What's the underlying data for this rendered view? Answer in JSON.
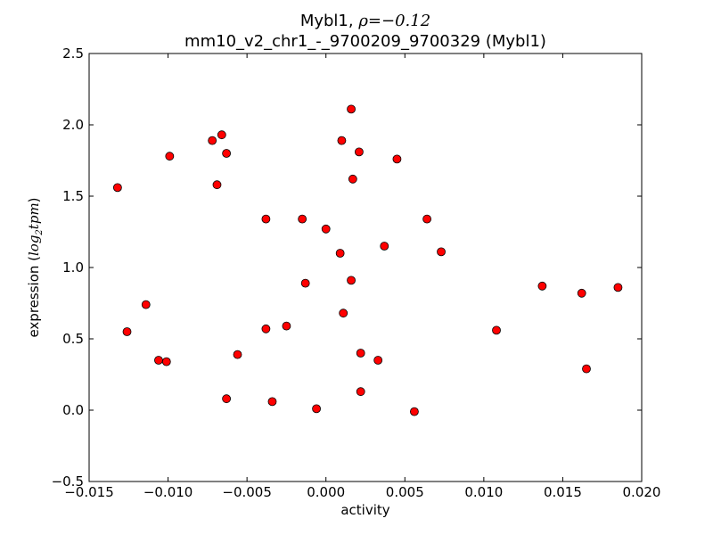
{
  "chart_data": {
    "type": "scatter",
    "title_line1_prefix": "Mybl1, ",
    "title_line1_rho": "ρ",
    "title_line1_value": "=−0.12",
    "title_line2": "mm10_v2_chr1_-_9700209_9700329 (Mybl1)",
    "xlabel": "activity",
    "ylabel_prefix": "expression (",
    "ylabel_math": "log",
    "ylabel_sub": "2",
    "ylabel_math2": "tpm",
    "ylabel_suffix": ")",
    "xlim": [
      -0.015,
      0.02
    ],
    "ylim": [
      -0.5,
      2.5
    ],
    "xticks": [
      -0.015,
      -0.01,
      -0.005,
      0.0,
      0.005,
      0.01,
      0.015,
      0.02
    ],
    "xtick_labels": [
      "−0.015",
      "−0.010",
      "−0.005",
      "0.000",
      "0.005",
      "0.010",
      "0.015",
      "0.020"
    ],
    "yticks": [
      -0.5,
      0.0,
      0.5,
      1.0,
      1.5,
      2.0,
      2.5
    ],
    "ytick_labels": [
      "−0.5",
      "0.0",
      "0.5",
      "1.0",
      "1.5",
      "2.0",
      "2.5"
    ],
    "grid": false,
    "marker_color": "#ff0000",
    "marker_edge_color": "#000000",
    "points": [
      {
        "x": -0.0132,
        "y": 1.56
      },
      {
        "x": -0.0126,
        "y": 0.55
      },
      {
        "x": -0.0114,
        "y": 0.74
      },
      {
        "x": -0.0106,
        "y": 0.35
      },
      {
        "x": -0.0101,
        "y": 0.34
      },
      {
        "x": -0.0099,
        "y": 1.78
      },
      {
        "x": -0.0072,
        "y": 1.89
      },
      {
        "x": -0.0069,
        "y": 1.58
      },
      {
        "x": -0.0066,
        "y": 1.93
      },
      {
        "x": -0.0063,
        "y": 1.8
      },
      {
        "x": -0.0063,
        "y": 0.08
      },
      {
        "x": -0.0056,
        "y": 0.39
      },
      {
        "x": -0.0038,
        "y": 1.34
      },
      {
        "x": -0.0038,
        "y": 0.57
      },
      {
        "x": -0.0034,
        "y": 0.06
      },
      {
        "x": -0.0025,
        "y": 0.59
      },
      {
        "x": -0.0015,
        "y": 1.34
      },
      {
        "x": -0.0013,
        "y": 0.89
      },
      {
        "x": -0.0006,
        "y": 0.01
      },
      {
        "x": 0.0,
        "y": 1.27
      },
      {
        "x": 0.0009,
        "y": 1.1
      },
      {
        "x": 0.001,
        "y": 1.89
      },
      {
        "x": 0.0011,
        "y": 0.68
      },
      {
        "x": 0.0016,
        "y": 2.11
      },
      {
        "x": 0.0016,
        "y": 0.91
      },
      {
        "x": 0.0017,
        "y": 1.62
      },
      {
        "x": 0.0021,
        "y": 1.81
      },
      {
        "x": 0.0022,
        "y": 0.4
      },
      {
        "x": 0.0022,
        "y": 0.13
      },
      {
        "x": 0.0033,
        "y": 0.35
      },
      {
        "x": 0.0037,
        "y": 1.15
      },
      {
        "x": 0.0045,
        "y": 1.76
      },
      {
        "x": 0.0056,
        "y": -0.01
      },
      {
        "x": 0.0064,
        "y": 1.34
      },
      {
        "x": 0.0073,
        "y": 1.11
      },
      {
        "x": 0.0108,
        "y": 0.56
      },
      {
        "x": 0.0137,
        "y": 0.87
      },
      {
        "x": 0.0162,
        "y": 0.82
      },
      {
        "x": 0.0165,
        "y": 0.29
      },
      {
        "x": 0.0185,
        "y": 0.86
      }
    ]
  }
}
